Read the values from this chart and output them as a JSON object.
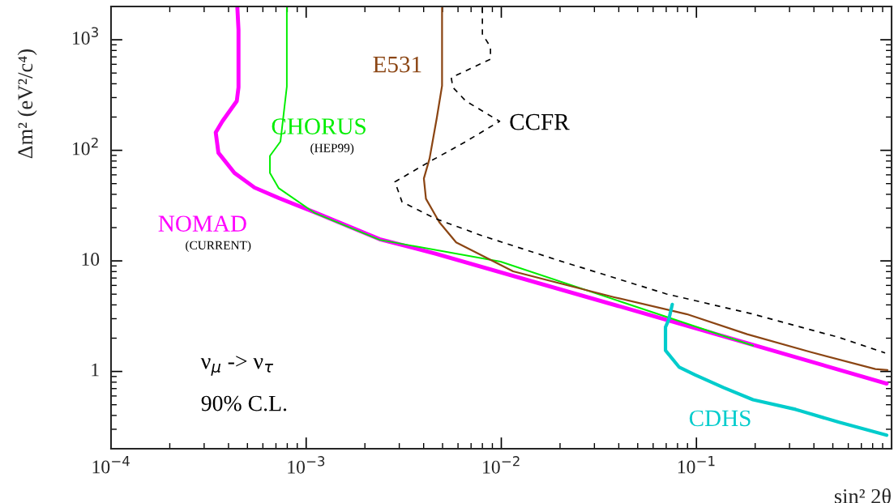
{
  "chart_data": {
    "type": "line",
    "xlabel": "sin² 2θ",
    "ylabel": "Δm² (eV²/c⁴)",
    "log": "xy",
    "grid": false,
    "legend": false,
    "xlim": [
      0.0001,
      1
    ],
    "ylim": [
      0.2,
      2000
    ],
    "xticks": [
      {
        "value": 0.0001,
        "label": "10$^{−4}$"
      },
      {
        "value": 0.001,
        "label": "10$^{−3}$"
      },
      {
        "value": 0.01,
        "label": "10$^{−2}$"
      },
      {
        "value": 0.1,
        "label": "10$^{−1}$"
      }
    ],
    "yticks": [
      1,
      10,
      {
        "value": 100,
        "label": "10$^{2}$"
      },
      {
        "value": 1000,
        "label": "10$^{3}$"
      }
    ],
    "series": [
      {
        "name": "NOMAD",
        "color": "#ff00ff",
        "line_style": "solid",
        "x": [
          0.000444,
          0.00045,
          0.00045,
          0.000441,
          0.000372,
          0.000344,
          0.000355,
          0.000429,
          0.000544,
          0.000724,
          0.00111,
          0.00238,
          0.00463,
          0.0703,
          0.944
        ],
        "values": [
          1950,
          1230,
          371,
          279,
          183,
          145,
          95,
          62.5,
          46,
          37,
          27.4,
          15.7,
          11.6,
          2.93,
          0.777
        ]
      },
      {
        "name": "CHORUS",
        "color": "#00ee00",
        "line_style": "solid",
        "x": [
          0.000796,
          0.000796,
          0.000759,
          0.000738,
          0.000652,
          0.000652,
          0.000724,
          0.00111,
          0.00238,
          0.00991,
          0.195
        ],
        "values": [
          1950,
          377,
          183,
          120,
          89,
          62.5,
          45.4,
          27,
          15.5,
          9.84,
          1.71
        ]
      },
      {
        "name": "E531",
        "color": "#8b4513",
        "line_style": "solid",
        "x": [
          0.00497,
          0.00497,
          0.00467,
          0.00429,
          0.00401,
          0.00411,
          0.00481,
          0.00587,
          0.0115,
          0.0379,
          0.0891,
          0.182,
          0.383,
          0.826,
          0.953
        ],
        "values": [
          1950,
          384,
          196,
          84.5,
          55.6,
          36.5,
          22.4,
          14.7,
          8.04,
          4.69,
          3.3,
          2.17,
          1.5,
          1.05,
          1.03
        ]
      },
      {
        "name": "CCFR",
        "color": "#000000",
        "line_style": "dashed",
        "x": [
          0.008,
          0.008,
          0.0088,
          0.0088,
          0.00554,
          0.00565,
          0.00658,
          0.0098,
          0.00658,
          0.00429,
          0.00285,
          0.0031,
          0.00463,
          0.00804,
          0.02,
          0.0703,
          0.195,
          0.538,
          0.927
        ],
        "values": [
          1950,
          1125,
          860,
          668,
          454,
          371,
          279,
          183,
          120,
          79,
          51.9,
          34.1,
          24,
          16.8,
          10,
          5.02,
          3.3,
          2.03,
          1.47
        ]
      },
      {
        "name": "CDHS",
        "color": "#00cccc",
        "line_style": "solid",
        "x": [
          0.0752,
          0.0721,
          0.0694,
          0.0694,
          0.0817,
          0.098,
          0.138,
          0.195,
          0.322,
          0.538,
          0.944
        ],
        "values": [
          4.04,
          2.93,
          2.52,
          1.55,
          1.09,
          0.935,
          0.714,
          0.555,
          0.454,
          0.347,
          0.265
        ]
      }
    ],
    "annotations": [
      "(CURRENT)",
      "(HEP99)",
      "ν$_{μ}$ -> ν$_{τ}$",
      "90% C.L."
    ]
  }
}
